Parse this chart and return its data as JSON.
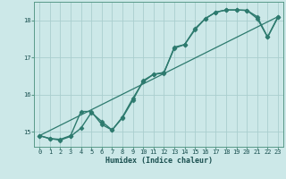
{
  "xlabel": "Humidex (Indice chaleur)",
  "bg_color": "#cce8e8",
  "line_color": "#2d7a6e",
  "grid_color": "#aacece",
  "xlim": [
    -0.5,
    23.5
  ],
  "ylim": [
    14.6,
    18.5
  ],
  "xticks": [
    0,
    1,
    2,
    3,
    4,
    5,
    6,
    7,
    8,
    9,
    10,
    11,
    12,
    13,
    14,
    15,
    16,
    17,
    18,
    19,
    20,
    21,
    22,
    23
  ],
  "yticks": [
    15,
    16,
    17,
    18
  ],
  "line1_x": [
    0,
    1,
    2,
    3,
    4,
    5,
    6,
    7,
    8,
    9,
    10,
    11,
    12,
    13,
    14,
    15,
    16,
    17,
    18,
    19,
    20,
    21,
    22,
    23
  ],
  "line1_y": [
    14.9,
    14.82,
    14.8,
    14.9,
    15.55,
    15.55,
    15.2,
    15.05,
    15.4,
    15.9,
    16.35,
    16.55,
    16.6,
    17.25,
    17.35,
    17.78,
    18.05,
    18.22,
    18.28,
    18.28,
    18.27,
    18.05,
    17.55,
    18.1
  ],
  "line2_x": [
    0,
    1,
    2,
    3,
    4,
    5,
    6,
    7,
    8,
    9,
    10,
    11,
    12,
    13,
    14,
    15,
    16,
    17,
    18,
    19,
    20,
    21,
    22,
    23
  ],
  "line2_y": [
    14.9,
    14.82,
    14.78,
    14.88,
    15.1,
    15.52,
    15.28,
    15.05,
    15.38,
    15.85,
    16.38,
    16.55,
    16.58,
    17.28,
    17.35,
    17.75,
    18.05,
    18.22,
    18.28,
    18.28,
    18.27,
    18.1,
    17.55,
    18.08
  ],
  "line3_x": [
    0,
    23
  ],
  "line3_y": [
    14.9,
    18.1
  ],
  "marker": "D",
  "markersize": 2.5,
  "linewidth": 1.0
}
